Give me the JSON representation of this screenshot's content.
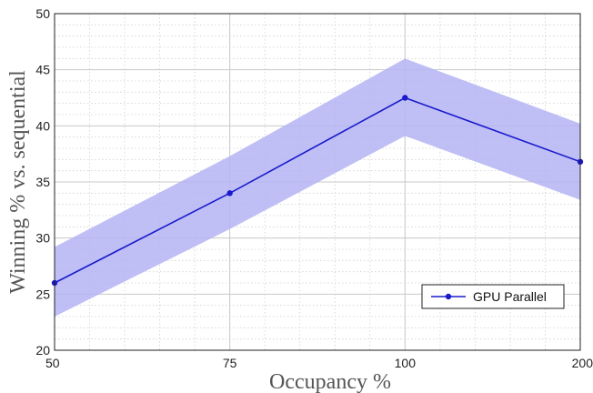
{
  "chart_data": {
    "type": "line",
    "xlabel": "Occupancy %",
    "ylabel": "Winning % vs. sequential",
    "categories": [
      "50",
      "75",
      "100",
      "200"
    ],
    "ylim": [
      20,
      50
    ],
    "yticks": [
      20,
      25,
      30,
      35,
      40,
      45,
      50
    ],
    "grid": true,
    "legend_position": "bottom-right",
    "series": [
      {
        "name": "GPU Parallel",
        "values": [
          26.0,
          34.0,
          42.5,
          36.8
        ],
        "lower": [
          23.0,
          30.8,
          39.1,
          33.4
        ],
        "upper": [
          29.2,
          37.3,
          46.0,
          40.2
        ],
        "color": "#1a1acc",
        "band_color": "#b4b4f4"
      }
    ]
  }
}
